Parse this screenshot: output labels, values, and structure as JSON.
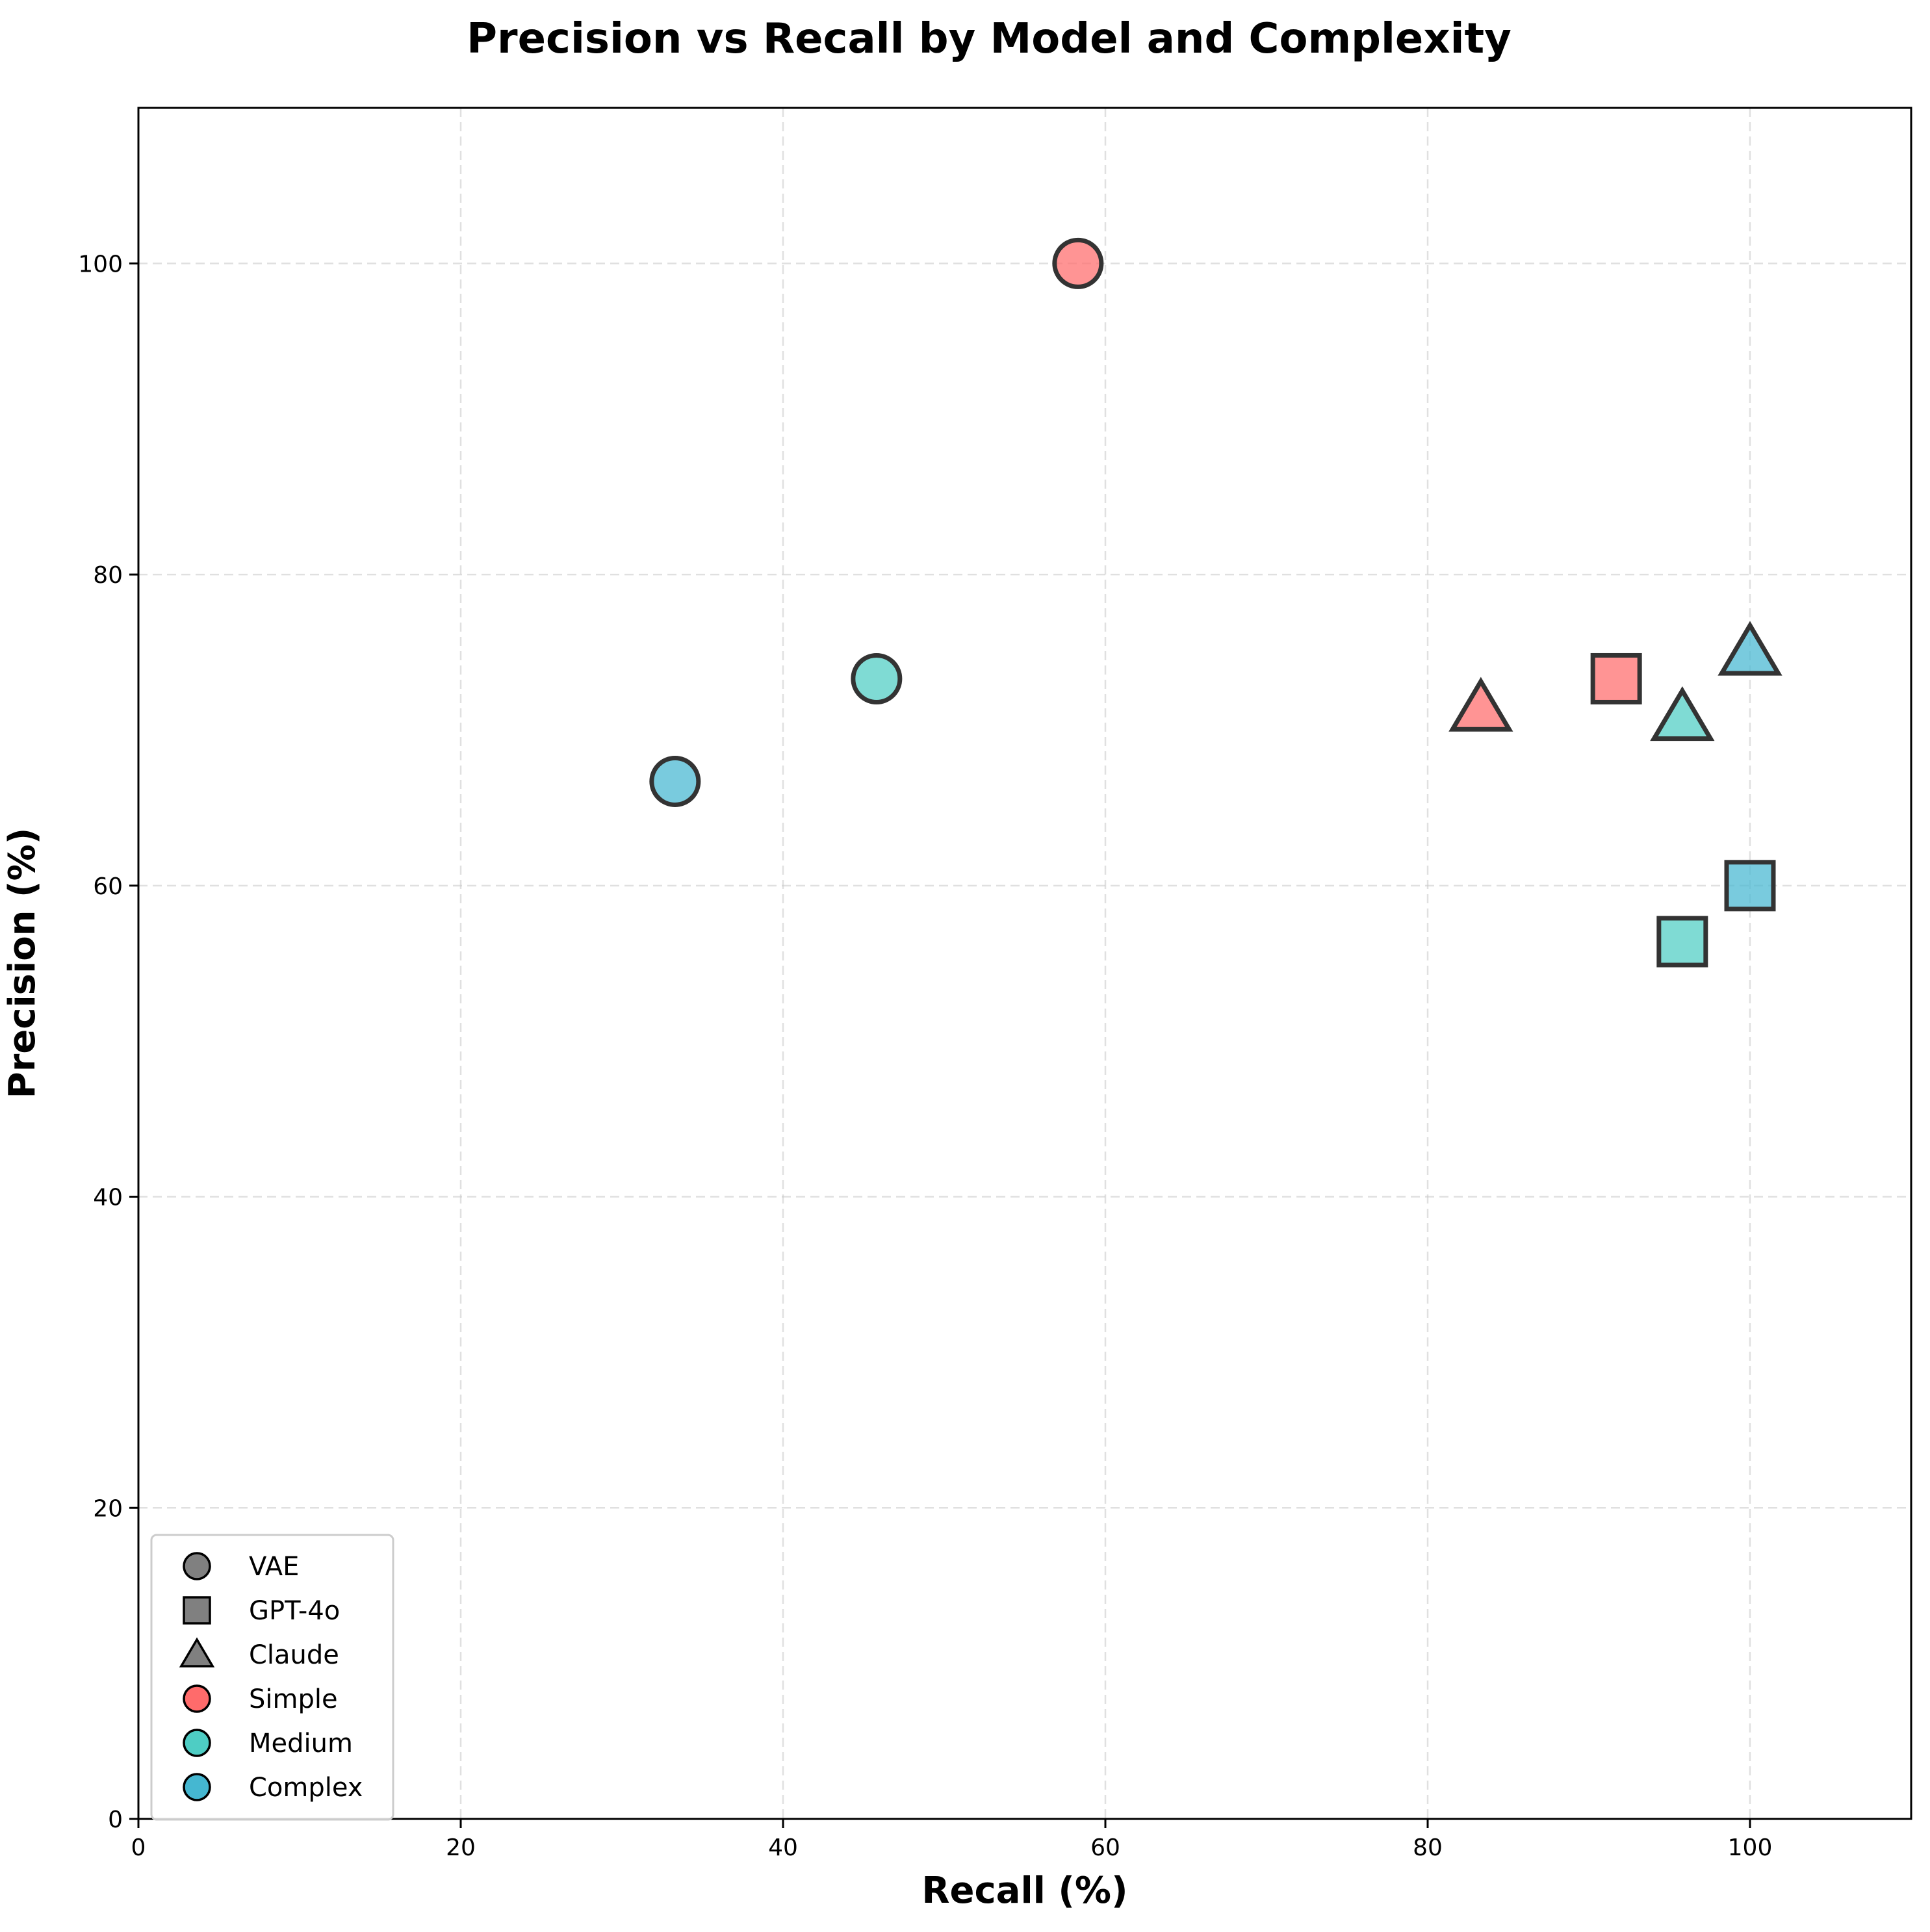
{
  "chart_data": {
    "type": "scatter",
    "title": "Precision vs Recall by Model and Complexity",
    "xlabel": "Recall (%)",
    "ylabel": "Precision (%)",
    "xlim": [
      0,
      110
    ],
    "ylim": [
      0,
      110
    ],
    "xticks": [
      0,
      20,
      40,
      60,
      80,
      100
    ],
    "yticks": [
      0,
      20,
      40,
      60,
      80,
      100
    ],
    "grid": true,
    "legend_position": "lower-left",
    "models": [
      {
        "name": "VAE",
        "marker": "circle"
      },
      {
        "name": "GPT-4o",
        "marker": "square"
      },
      {
        "name": "Claude",
        "marker": "triangle"
      }
    ],
    "complexities": [
      {
        "name": "Simple",
        "color": "#FF6B6B"
      },
      {
        "name": "Medium",
        "color": "#4ECDC4"
      },
      {
        "name": "Complex",
        "color": "#45B7D1"
      }
    ],
    "points": [
      {
        "model": "VAE",
        "complexity": "Simple",
        "x": 58.3,
        "y": 100.0
      },
      {
        "model": "VAE",
        "complexity": "Medium",
        "x": 45.8,
        "y": 73.3
      },
      {
        "model": "VAE",
        "complexity": "Complex",
        "x": 33.3,
        "y": 66.7
      },
      {
        "model": "GPT-4o",
        "complexity": "Simple",
        "x": 91.7,
        "y": 73.3
      },
      {
        "model": "GPT-4o",
        "complexity": "Medium",
        "x": 95.8,
        "y": 56.4
      },
      {
        "model": "GPT-4o",
        "complexity": "Complex",
        "x": 100.0,
        "y": 60.0
      },
      {
        "model": "Claude",
        "complexity": "Simple",
        "x": 83.3,
        "y": 71.4
      },
      {
        "model": "Claude",
        "complexity": "Medium",
        "x": 95.8,
        "y": 70.8
      },
      {
        "model": "Claude",
        "complexity": "Complex",
        "x": 100.0,
        "y": 75.0
      }
    ]
  }
}
